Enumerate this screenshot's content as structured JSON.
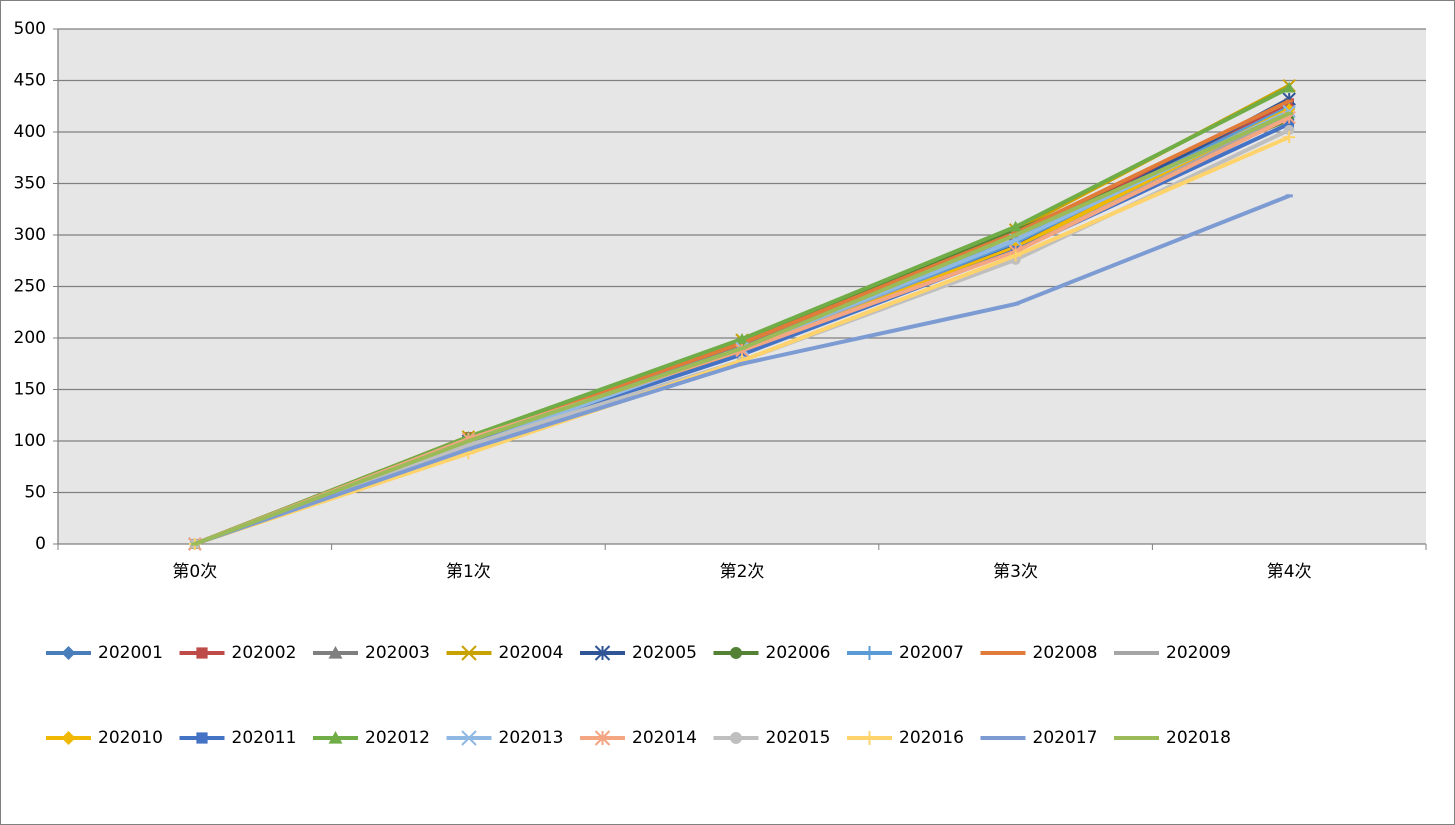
{
  "chart_data": {
    "type": "line",
    "title": "",
    "xlabel": "",
    "ylabel": "",
    "categories": [
      "第0次",
      "第1次",
      "第2次",
      "第3次",
      "第4次"
    ],
    "ylim": [
      0,
      500
    ],
    "yticks": [
      0,
      50,
      100,
      150,
      200,
      250,
      300,
      350,
      400,
      450,
      500
    ],
    "grid": true,
    "plot_background": "#e6e6e6",
    "gridline_color": "#808080",
    "legend_position": "bottom",
    "series": [
      {
        "name": "202001",
        "color": "#4a7ebb",
        "marker": "diamond",
        "values": [
          0,
          103,
          193,
          295,
          425
        ]
      },
      {
        "name": "202002",
        "color": "#be4b48",
        "marker": "square",
        "values": [
          0,
          104,
          194,
          300,
          428
        ]
      },
      {
        "name": "202003",
        "color": "#7f7f7f",
        "marker": "triangle",
        "values": [
          0,
          102,
          192,
          294,
          420
        ]
      },
      {
        "name": "202004",
        "color": "#c8a200",
        "marker": "x",
        "values": [
          0,
          104,
          198,
          305,
          445
        ]
      },
      {
        "name": "202005",
        "color": "#2f5597",
        "marker": "star",
        "values": [
          0,
          100,
          188,
          290,
          432
        ]
      },
      {
        "name": "202006",
        "color": "#548235",
        "marker": "circle",
        "values": [
          0,
          103,
          196,
          304,
          412
        ]
      },
      {
        "name": "202007",
        "color": "#5b9bd5",
        "marker": "plus",
        "values": [
          0,
          101,
          190,
          293,
          424
        ]
      },
      {
        "name": "202008",
        "color": "#e07b39",
        "marker": "dash",
        "values": [
          0,
          103,
          195,
          302,
          430
        ]
      },
      {
        "name": "202009",
        "color": "#a5a5a5",
        "marker": "dash",
        "values": [
          0,
          100,
          188,
          288,
          418
        ]
      },
      {
        "name": "202010",
        "color": "#f0b800",
        "marker": "diamond",
        "values": [
          0,
          98,
          186,
          288,
          422
        ]
      },
      {
        "name": "202011",
        "color": "#4472c4",
        "marker": "square",
        "values": [
          0,
          97,
          184,
          285,
          408
        ]
      },
      {
        "name": "202012",
        "color": "#70ad47",
        "marker": "triangle",
        "values": [
          0,
          104,
          199,
          308,
          443
        ]
      },
      {
        "name": "202013",
        "color": "#8fb8e3",
        "marker": "x",
        "values": [
          0,
          95,
          190,
          295,
          420
        ]
      },
      {
        "name": "202014",
        "color": "#f4a582",
        "marker": "star",
        "values": [
          0,
          102,
          188,
          284,
          414
        ]
      },
      {
        "name": "202015",
        "color": "#bfbfbf",
        "marker": "circle",
        "values": [
          0,
          96,
          178,
          276,
          402
        ]
      },
      {
        "name": "202016",
        "color": "#ffd36b",
        "marker": "plus",
        "values": [
          0,
          88,
          178,
          280,
          395
        ]
      },
      {
        "name": "202017",
        "color": "#7d9bd3",
        "marker": "dash",
        "values": [
          0,
          92,
          175,
          233,
          338
        ]
      },
      {
        "name": "202018",
        "color": "#9bbb59",
        "marker": "dash",
        "values": [
          0,
          100,
          190,
          300,
          418
        ]
      }
    ]
  }
}
